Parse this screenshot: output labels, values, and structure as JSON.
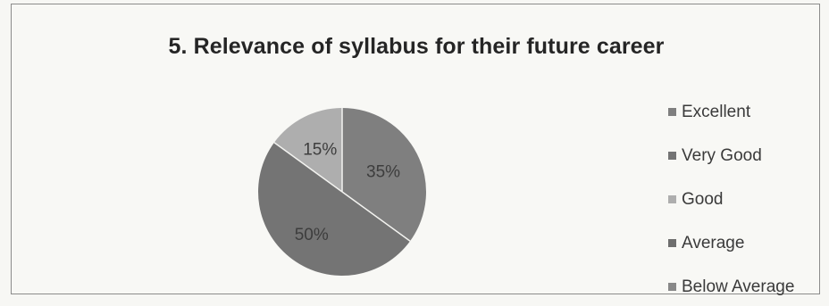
{
  "chart_data": {
    "type": "pie",
    "title": "5. Relevance of syllabus for their future career",
    "categories": [
      "Excellent",
      "Very Good",
      "Good",
      "Average",
      "Below Average"
    ],
    "values": [
      35,
      50,
      15,
      0,
      0
    ],
    "data_labels": [
      "35%",
      "50%",
      "15%",
      "",
      ""
    ],
    "colors": [
      "#7f7f7f",
      "#747474",
      "#aeaeae",
      "#6e6e6e",
      "#888888"
    ],
    "legend_position": "right"
  }
}
